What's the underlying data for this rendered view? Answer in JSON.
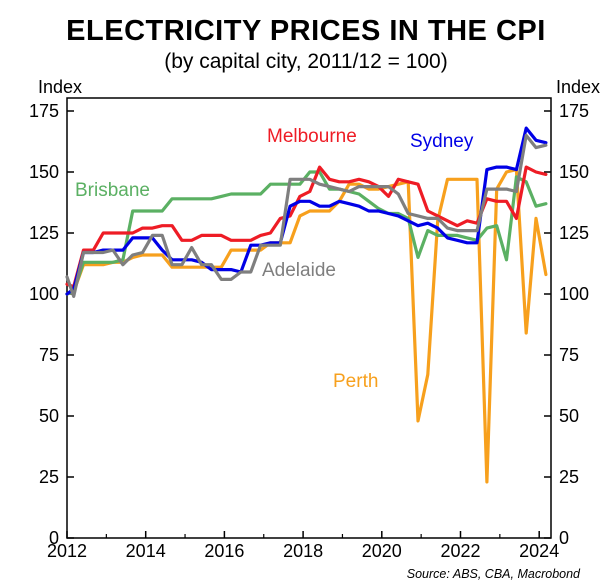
{
  "chart_data": {
    "type": "line",
    "title": "ELECTRICITY PRICES IN THE CPI",
    "subtitle": "(by capital city, 2011/12 = 100)",
    "ylabel_left": "Index",
    "ylabel_right": "Index",
    "source": "Source: ABS, CBA, Macrobond",
    "ylim": [
      0,
      175
    ],
    "yticks": [
      0,
      25,
      50,
      75,
      100,
      125,
      150,
      175
    ],
    "yticks_right": [
      0,
      25,
      50,
      75,
      100,
      125,
      150,
      175
    ],
    "xlim": [
      2012,
      2024.3
    ],
    "xticks": [
      2012,
      2014,
      2016,
      2018,
      2020,
      2022,
      2024
    ],
    "xticks_right_edge": [
      2024
    ],
    "grid": false,
    "series": [
      {
        "name": "Melbourne",
        "color": "#ee1c25",
        "points": [
          [
            2012.0,
            104
          ],
          [
            2012.17,
            103
          ],
          [
            2012.42,
            118
          ],
          [
            2012.67,
            118
          ],
          [
            2012.92,
            125
          ],
          [
            2013.17,
            125
          ],
          [
            2013.42,
            125
          ],
          [
            2013.67,
            125
          ],
          [
            2013.92,
            127
          ],
          [
            2014.17,
            127
          ],
          [
            2014.42,
            128
          ],
          [
            2014.67,
            128
          ],
          [
            2014.92,
            122
          ],
          [
            2015.17,
            122
          ],
          [
            2015.42,
            124
          ],
          [
            2015.67,
            124
          ],
          [
            2015.92,
            124
          ],
          [
            2016.17,
            122
          ],
          [
            2016.42,
            122
          ],
          [
            2016.67,
            122
          ],
          [
            2016.92,
            124
          ],
          [
            2017.17,
            125
          ],
          [
            2017.42,
            131
          ],
          [
            2017.67,
            132
          ],
          [
            2017.92,
            140
          ],
          [
            2018.17,
            142
          ],
          [
            2018.42,
            152
          ],
          [
            2018.67,
            147
          ],
          [
            2018.92,
            146
          ],
          [
            2019.17,
            146
          ],
          [
            2019.42,
            147
          ],
          [
            2019.67,
            146
          ],
          [
            2019.92,
            144
          ],
          [
            2020.17,
            140
          ],
          [
            2020.42,
            147
          ],
          [
            2020.67,
            146
          ],
          [
            2020.92,
            145
          ],
          [
            2021.17,
            134
          ],
          [
            2021.42,
            132
          ],
          [
            2021.67,
            130
          ],
          [
            2021.92,
            128
          ],
          [
            2022.17,
            130
          ],
          [
            2022.42,
            129
          ],
          [
            2022.67,
            139
          ],
          [
            2022.92,
            138
          ],
          [
            2023.17,
            138
          ],
          [
            2023.42,
            131
          ],
          [
            2023.67,
            152
          ],
          [
            2023.92,
            150
          ],
          [
            2024.17,
            149
          ]
        ]
      },
      {
        "name": "Sydney",
        "color": "#0000e6",
        "points": [
          [
            2012.0,
            100
          ],
          [
            2012.17,
            102
          ],
          [
            2012.42,
            117
          ],
          [
            2012.67,
            117
          ],
          [
            2012.92,
            118
          ],
          [
            2013.17,
            118
          ],
          [
            2013.42,
            118
          ],
          [
            2013.67,
            123
          ],
          [
            2013.92,
            123
          ],
          [
            2014.17,
            123
          ],
          [
            2014.42,
            118
          ],
          [
            2014.67,
            114
          ],
          [
            2014.92,
            114
          ],
          [
            2015.17,
            114
          ],
          [
            2015.42,
            113
          ],
          [
            2015.67,
            110
          ],
          [
            2015.92,
            110
          ],
          [
            2016.17,
            110
          ],
          [
            2016.42,
            109
          ],
          [
            2016.67,
            120
          ],
          [
            2016.92,
            120
          ],
          [
            2017.17,
            121
          ],
          [
            2017.42,
            121
          ],
          [
            2017.67,
            136
          ],
          [
            2017.92,
            138
          ],
          [
            2018.17,
            138
          ],
          [
            2018.42,
            136
          ],
          [
            2018.67,
            136
          ],
          [
            2018.92,
            138
          ],
          [
            2019.17,
            137
          ],
          [
            2019.42,
            136
          ],
          [
            2019.67,
            134
          ],
          [
            2019.92,
            134
          ],
          [
            2020.17,
            133
          ],
          [
            2020.42,
            132
          ],
          [
            2020.67,
            130
          ],
          [
            2020.92,
            128
          ],
          [
            2021.17,
            129
          ],
          [
            2021.42,
            127
          ],
          [
            2021.67,
            123
          ],
          [
            2021.92,
            122
          ],
          [
            2022.17,
            121
          ],
          [
            2022.42,
            121
          ],
          [
            2022.67,
            151
          ],
          [
            2022.92,
            152
          ],
          [
            2023.17,
            152
          ],
          [
            2023.42,
            151
          ],
          [
            2023.67,
            168
          ],
          [
            2023.92,
            163
          ],
          [
            2024.17,
            162
          ]
        ]
      },
      {
        "name": "Brisbane",
        "color": "#5bb063",
        "points": [
          [
            2012.0,
            100
          ],
          [
            2012.17,
            101
          ],
          [
            2012.42,
            113
          ],
          [
            2012.67,
            113
          ],
          [
            2012.92,
            113
          ],
          [
            2013.17,
            113
          ],
          [
            2013.42,
            114
          ],
          [
            2013.67,
            134
          ],
          [
            2013.92,
            134
          ],
          [
            2014.17,
            134
          ],
          [
            2014.42,
            134
          ],
          [
            2014.67,
            139
          ],
          [
            2014.92,
            139
          ],
          [
            2015.17,
            139
          ],
          [
            2015.42,
            139
          ],
          [
            2015.67,
            139
          ],
          [
            2015.92,
            140
          ],
          [
            2016.17,
            141
          ],
          [
            2016.42,
            141
          ],
          [
            2016.67,
            141
          ],
          [
            2016.92,
            141
          ],
          [
            2017.17,
            145
          ],
          [
            2017.42,
            145
          ],
          [
            2017.67,
            145
          ],
          [
            2017.92,
            145
          ],
          [
            2018.17,
            150
          ],
          [
            2018.42,
            150
          ],
          [
            2018.67,
            143
          ],
          [
            2018.92,
            143
          ],
          [
            2019.17,
            142
          ],
          [
            2019.42,
            141
          ],
          [
            2019.67,
            138
          ],
          [
            2019.92,
            135
          ],
          [
            2020.17,
            133
          ],
          [
            2020.42,
            133
          ],
          [
            2020.67,
            131
          ],
          [
            2020.92,
            115
          ],
          [
            2021.17,
            126
          ],
          [
            2021.42,
            124
          ],
          [
            2021.67,
            124
          ],
          [
            2021.92,
            124
          ],
          [
            2022.17,
            123
          ],
          [
            2022.42,
            122
          ],
          [
            2022.67,
            127
          ],
          [
            2022.92,
            128
          ],
          [
            2023.17,
            114
          ],
          [
            2023.42,
            148
          ],
          [
            2023.67,
            146
          ],
          [
            2023.92,
            136
          ],
          [
            2024.17,
            137
          ]
        ]
      },
      {
        "name": "Adelaide",
        "color": "#7f7f7f",
        "points": [
          [
            2012.0,
            107
          ],
          [
            2012.17,
            99
          ],
          [
            2012.42,
            117
          ],
          [
            2012.67,
            117
          ],
          [
            2012.92,
            117
          ],
          [
            2013.17,
            118
          ],
          [
            2013.42,
            112
          ],
          [
            2013.67,
            116
          ],
          [
            2013.92,
            117
          ],
          [
            2014.17,
            124
          ],
          [
            2014.42,
            124
          ],
          [
            2014.67,
            112
          ],
          [
            2014.92,
            112
          ],
          [
            2015.17,
            119
          ],
          [
            2015.42,
            112
          ],
          [
            2015.67,
            112
          ],
          [
            2015.92,
            106
          ],
          [
            2016.17,
            106
          ],
          [
            2016.42,
            109
          ],
          [
            2016.67,
            109
          ],
          [
            2016.92,
            120
          ],
          [
            2017.17,
            120
          ],
          [
            2017.42,
            120
          ],
          [
            2017.67,
            147
          ],
          [
            2017.92,
            147
          ],
          [
            2018.17,
            147
          ],
          [
            2018.42,
            145
          ],
          [
            2018.67,
            144
          ],
          [
            2018.92,
            143
          ],
          [
            2019.17,
            142
          ],
          [
            2019.42,
            144
          ],
          [
            2019.67,
            144
          ],
          [
            2019.92,
            144
          ],
          [
            2020.17,
            144
          ],
          [
            2020.42,
            141
          ],
          [
            2020.67,
            133
          ],
          [
            2020.92,
            132
          ],
          [
            2021.17,
            131
          ],
          [
            2021.42,
            131
          ],
          [
            2021.67,
            127
          ],
          [
            2021.92,
            126
          ],
          [
            2022.17,
            126
          ],
          [
            2022.42,
            126
          ],
          [
            2022.67,
            143
          ],
          [
            2022.92,
            143
          ],
          [
            2023.17,
            143
          ],
          [
            2023.42,
            142
          ],
          [
            2023.67,
            165
          ],
          [
            2023.92,
            160
          ],
          [
            2024.17,
            161
          ]
        ]
      },
      {
        "name": "Perth",
        "color": "#f7a01d",
        "points": [
          [
            2012.0,
            100
          ],
          [
            2012.17,
            101
          ],
          [
            2012.42,
            112
          ],
          [
            2012.67,
            112
          ],
          [
            2012.92,
            112
          ],
          [
            2013.17,
            113
          ],
          [
            2013.42,
            113
          ],
          [
            2013.67,
            115
          ],
          [
            2013.92,
            116
          ],
          [
            2014.17,
            116
          ],
          [
            2014.42,
            116
          ],
          [
            2014.67,
            111
          ],
          [
            2014.92,
            111
          ],
          [
            2015.17,
            111
          ],
          [
            2015.42,
            111
          ],
          [
            2015.67,
            111
          ],
          [
            2015.92,
            111
          ],
          [
            2016.17,
            118
          ],
          [
            2016.42,
            118
          ],
          [
            2016.67,
            118
          ],
          [
            2016.92,
            118
          ],
          [
            2017.17,
            121
          ],
          [
            2017.42,
            121
          ],
          [
            2017.67,
            121
          ],
          [
            2017.92,
            132
          ],
          [
            2018.17,
            134
          ],
          [
            2018.42,
            134
          ],
          [
            2018.67,
            134
          ],
          [
            2018.92,
            138
          ],
          [
            2019.17,
            145
          ],
          [
            2019.42,
            145
          ],
          [
            2019.67,
            143
          ],
          [
            2019.92,
            143
          ],
          [
            2020.17,
            144
          ],
          [
            2020.42,
            145
          ],
          [
            2020.67,
            146
          ],
          [
            2020.92,
            48
          ],
          [
            2021.17,
            67
          ],
          [
            2021.42,
            130
          ],
          [
            2021.67,
            147
          ],
          [
            2021.92,
            147
          ],
          [
            2022.17,
            147
          ],
          [
            2022.42,
            147
          ],
          [
            2022.67,
            23
          ],
          [
            2022.92,
            143
          ],
          [
            2023.17,
            150
          ],
          [
            2023.42,
            151
          ],
          [
            2023.67,
            84
          ],
          [
            2023.92,
            131
          ],
          [
            2024.17,
            108
          ]
        ]
      }
    ],
    "series_labels": [
      {
        "name": "Melbourne",
        "text": "Melbourne"
      },
      {
        "name": "Sydney",
        "text": "Sydney"
      },
      {
        "name": "Brisbane",
        "text": "Brisbane"
      },
      {
        "name": "Adelaide",
        "text": "Adelaide"
      },
      {
        "name": "Perth",
        "text": "Perth"
      }
    ]
  }
}
